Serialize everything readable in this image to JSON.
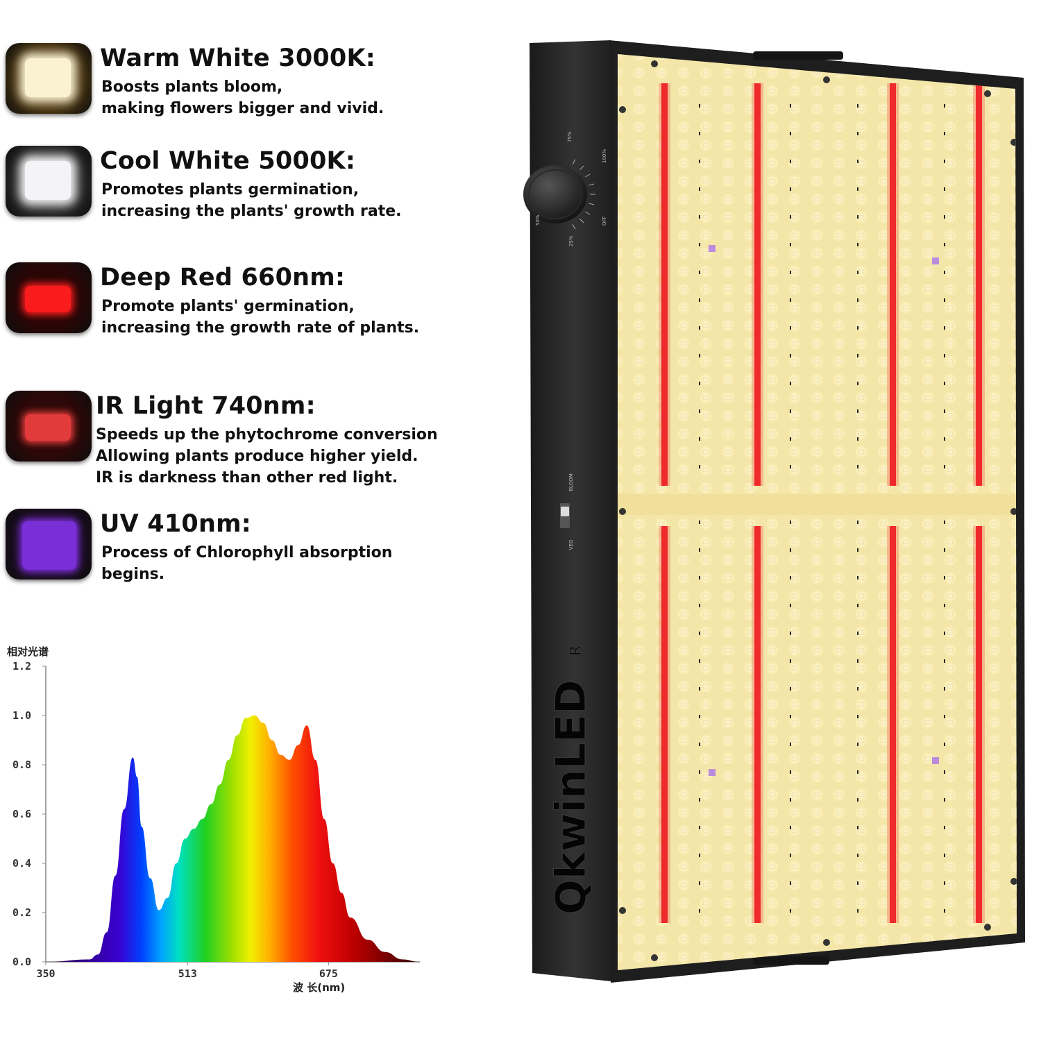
{
  "features": [
    {
      "title": "Warm White 3000K:",
      "lines": [
        "Boosts plants bloom,",
        "making flowers bigger and vivid."
      ],
      "icon": "warm-white-led-icon",
      "frame_color": "#4a3510",
      "core_color": "#fbf2d2"
    },
    {
      "title": "Cool White 5000K:",
      "lines": [
        "Promotes plants germination,",
        "increasing the plants' growth rate."
      ],
      "icon": "cool-white-led-icon",
      "frame_color": "#2a2a2a",
      "core_color": "#f4f4f6"
    },
    {
      "title": "Deep Red 660nm:",
      "lines": [
        "Promote plants' germination,",
        "increasing the growth rate of plants."
      ],
      "icon": "deep-red-led-icon",
      "frame_color": "#2a0606",
      "core_color": "#f81c1c"
    },
    {
      "title": "IR Light 740nm:",
      "lines": [
        "Speeds up the phytochrome conversion",
        "Allowing plants produce higher yield.",
        "IR is darkness than other red light."
      ],
      "icon": "ir-led-icon",
      "frame_color": "#2c0808",
      "core_color": "#e23b3b"
    },
    {
      "title": "UV 410nm:",
      "lines": [
        "Process of Chlorophyll absorption",
        "begins."
      ],
      "icon": "uv-led-icon",
      "frame_color": "#1c0c22",
      "core_color": "#7a2ed6"
    }
  ],
  "chart_data": {
    "type": "area",
    "ylabel": "相对光谱",
    "xlabel": "波 长(nm)",
    "xlim": [
      350,
      780
    ],
    "ylim": [
      0,
      1.2
    ],
    "y_ticks": [
      "0.0",
      "0.2",
      "0.4",
      "0.6",
      "0.8",
      "1.0",
      "1.2"
    ],
    "x_ticks": [
      "350",
      "513",
      "675"
    ],
    "x": [
      350,
      400,
      410,
      420,
      430,
      440,
      450,
      455,
      460,
      470,
      480,
      490,
      500,
      510,
      520,
      530,
      540,
      550,
      560,
      570,
      580,
      590,
      600,
      610,
      620,
      630,
      640,
      650,
      660,
      670,
      680,
      690,
      700,
      720,
      740,
      760,
      780
    ],
    "values": [
      0.0,
      0.01,
      0.03,
      0.12,
      0.35,
      0.62,
      0.83,
      0.75,
      0.55,
      0.34,
      0.21,
      0.26,
      0.4,
      0.5,
      0.54,
      0.58,
      0.64,
      0.72,
      0.82,
      0.92,
      0.99,
      1.0,
      0.97,
      0.9,
      0.84,
      0.82,
      0.88,
      0.96,
      0.82,
      0.58,
      0.4,
      0.28,
      0.18,
      0.09,
      0.04,
      0.01,
      0.0
    ]
  },
  "product": {
    "brand": "QkwinLED",
    "brand_mark": "R",
    "dimmer_labels": [
      "25%",
      "50%",
      "75%",
      "100%",
      "OFF"
    ],
    "switch_labels": [
      "VEG",
      "BLOOM"
    ],
    "board_color": "#f4e6a8",
    "frame_color": "#222222",
    "red_led_color": "#ee2a2a",
    "uv_led_color": "#b07ae6"
  }
}
